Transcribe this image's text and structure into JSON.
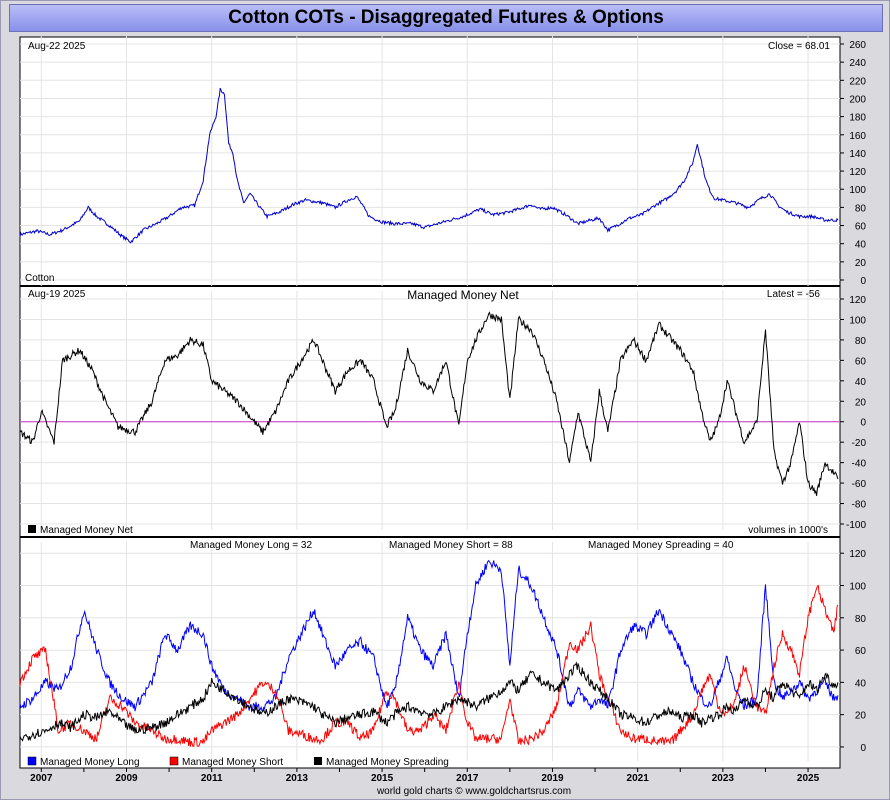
{
  "title": "Cotton COTs - Disaggregated Futures & Options",
  "footer": "world gold charts © www.goldchartsrus.com",
  "colors": {
    "price": "#0000cc",
    "net": "#000000",
    "zero_line": "#cc33cc",
    "long": "#0000ff",
    "short": "#ff0000",
    "spreading": "#000000",
    "title_bg": "#9aa0f0"
  },
  "x_axis": {
    "range": [
      2006.5,
      2025.75
    ],
    "tick_labels": [
      "2007",
      "2009",
      "2011",
      "2013",
      "2015",
      "2017",
      "2019",
      "2021",
      "2023",
      "2025"
    ]
  },
  "chart_data": [
    {
      "type": "line",
      "name": "price-panel",
      "date_label": "Aug-22  2025",
      "latest_label": "Close = 68.01",
      "series_label": "Cotton",
      "ylim": [
        0,
        260
      ],
      "yticks": [
        0,
        20,
        40,
        60,
        80,
        100,
        120,
        140,
        160,
        180,
        200,
        220,
        240,
        260
      ],
      "series": [
        {
          "name": "Cotton",
          "color": "#0000cc",
          "x": [
            2006.5,
            2006.9,
            2007.2,
            2007.5,
            2007.9,
            2008.1,
            2008.3,
            2008.6,
            2008.9,
            2009.1,
            2009.4,
            2009.7,
            2010.0,
            2010.3,
            2010.6,
            2010.8,
            2010.95,
            2011.1,
            2011.2,
            2011.3,
            2011.4,
            2011.5,
            2011.6,
            2011.75,
            2011.9,
            2012.1,
            2012.3,
            2012.6,
            2012.9,
            2013.2,
            2013.6,
            2013.9,
            2014.2,
            2014.4,
            2014.5,
            2014.7,
            2015.0,
            2015.3,
            2015.7,
            2016.0,
            2016.3,
            2016.6,
            2016.9,
            2017.1,
            2017.3,
            2017.6,
            2017.9,
            2018.2,
            2018.5,
            2018.7,
            2019.0,
            2019.3,
            2019.6,
            2019.9,
            2020.1,
            2020.3,
            2020.5,
            2020.8,
            2021.1,
            2021.4,
            2021.7,
            2021.9,
            2022.1,
            2022.3,
            2022.4,
            2022.5,
            2022.6,
            2022.7,
            2022.8,
            2023.0,
            2023.3,
            2023.6,
            2023.9,
            2024.1,
            2024.3,
            2024.5,
            2024.8,
            2025.1,
            2025.4,
            2025.7
          ],
          "y": [
            50,
            54,
            50,
            55,
            65,
            80,
            70,
            60,
            48,
            42,
            55,
            62,
            70,
            80,
            82,
            110,
            160,
            180,
            210,
            205,
            150,
            140,
            110,
            85,
            95,
            82,
            70,
            75,
            83,
            88,
            85,
            80,
            88,
            92,
            85,
            70,
            64,
            62,
            62,
            58,
            62,
            66,
            70,
            74,
            78,
            72,
            74,
            78,
            83,
            78,
            80,
            72,
            62,
            66,
            68,
            55,
            60,
            68,
            72,
            82,
            90,
            98,
            110,
            130,
            150,
            130,
            110,
            98,
            90,
            88,
            85,
            80,
            90,
            95,
            82,
            75,
            70,
            70,
            66,
            66
          ]
        }
      ]
    },
    {
      "type": "line",
      "name": "managed-money-net-panel",
      "date_label": "Aug-19  2025",
      "title": "Managed Money Net",
      "latest_label": "Latest = -56",
      "legend": "Managed Money Net",
      "units_note": "volumes in 1000's",
      "ylim": [
        -100,
        120
      ],
      "yticks": [
        -100,
        -80,
        -60,
        -40,
        -20,
        0,
        20,
        40,
        60,
        80,
        100,
        120
      ],
      "series": [
        {
          "name": "Managed Money Net",
          "color": "#000000",
          "x": [
            2006.5,
            2006.8,
            2007.0,
            2007.3,
            2007.5,
            2007.9,
            2008.2,
            2008.5,
            2008.8,
            2009.2,
            2009.6,
            2009.9,
            2010.2,
            2010.5,
            2010.8,
            2011.0,
            2011.3,
            2011.6,
            2011.9,
            2012.2,
            2012.5,
            2012.8,
            2013.1,
            2013.4,
            2013.6,
            2013.9,
            2014.2,
            2014.5,
            2014.8,
            2015.1,
            2015.3,
            2015.6,
            2015.9,
            2016.2,
            2016.5,
            2016.8,
            2017.0,
            2017.2,
            2017.5,
            2017.8,
            2018.0,
            2018.2,
            2018.5,
            2018.8,
            2019.1,
            2019.4,
            2019.6,
            2019.9,
            2020.1,
            2020.3,
            2020.6,
            2020.9,
            2021.2,
            2021.5,
            2021.8,
            2022.0,
            2022.3,
            2022.5,
            2022.7,
            2022.9,
            2023.1,
            2023.3,
            2023.5,
            2023.8,
            2024.0,
            2024.2,
            2024.4,
            2024.6,
            2024.8,
            2025.0,
            2025.2,
            2025.4,
            2025.6,
            2025.7
          ],
          "y": [
            -10,
            -20,
            10,
            -20,
            60,
            70,
            50,
            20,
            -5,
            -10,
            20,
            60,
            65,
            80,
            75,
            40,
            30,
            20,
            5,
            -10,
            10,
            40,
            60,
            80,
            60,
            30,
            50,
            60,
            40,
            -5,
            10,
            70,
            40,
            30,
            60,
            -5,
            60,
            80,
            105,
            100,
            20,
            100,
            90,
            60,
            20,
            -40,
            10,
            -40,
            30,
            -10,
            60,
            80,
            60,
            95,
            80,
            70,
            50,
            10,
            -20,
            0,
            40,
            10,
            -20,
            0,
            90,
            -30,
            -60,
            -40,
            0,
            -60,
            -70,
            -40,
            -50,
            -56
          ]
        }
      ]
    },
    {
      "type": "line",
      "name": "managed-money-components-panel",
      "labels": [
        "Managed Money Long = 32",
        "Managed Money Short = 88",
        "Managed Money Spreading = 40"
      ],
      "legend": [
        "Managed Money Long",
        "Managed Money Short",
        "Managed Money Spreading"
      ],
      "ylim": [
        -5,
        122
      ],
      "yticks": [
        0,
        20,
        40,
        60,
        80,
        100,
        120
      ],
      "series": [
        {
          "name": "Managed Money Long",
          "color": "#0000ff",
          "x": [
            2006.5,
            2006.8,
            2007.1,
            2007.4,
            2007.7,
            2008.0,
            2008.3,
            2008.6,
            2008.9,
            2009.2,
            2009.6,
            2009.9,
            2010.2,
            2010.5,
            2010.8,
            2011.0,
            2011.3,
            2011.6,
            2011.9,
            2012.2,
            2012.5,
            2012.8,
            2013.1,
            2013.4,
            2013.6,
            2013.9,
            2014.2,
            2014.5,
            2014.8,
            2015.1,
            2015.3,
            2015.6,
            2015.9,
            2016.2,
            2016.5,
            2016.8,
            2017.0,
            2017.2,
            2017.5,
            2017.8,
            2018.0,
            2018.2,
            2018.5,
            2018.8,
            2019.1,
            2019.4,
            2019.6,
            2019.9,
            2020.1,
            2020.3,
            2020.6,
            2020.9,
            2021.2,
            2021.5,
            2021.8,
            2022.0,
            2022.3,
            2022.5,
            2022.7,
            2022.9,
            2023.1,
            2023.3,
            2023.5,
            2023.8,
            2024.0,
            2024.2,
            2024.4,
            2024.6,
            2024.8,
            2025.0,
            2025.2,
            2025.4,
            2025.6,
            2025.7
          ],
          "y": [
            25,
            30,
            40,
            35,
            50,
            85,
            60,
            40,
            30,
            25,
            40,
            70,
            60,
            75,
            70,
            50,
            35,
            30,
            25,
            25,
            30,
            55,
            70,
            85,
            70,
            50,
            60,
            65,
            55,
            25,
            35,
            80,
            60,
            50,
            70,
            30,
            70,
            100,
            115,
            110,
            50,
            110,
            100,
            80,
            60,
            25,
            35,
            25,
            30,
            25,
            60,
            75,
            70,
            85,
            70,
            60,
            40,
            30,
            25,
            40,
            55,
            35,
            25,
            30,
            100,
            40,
            30,
            35,
            40,
            30,
            35,
            40,
            30,
            32
          ]
        },
        {
          "name": "Managed Money Short",
          "color": "#ff0000",
          "x": [
            2006.5,
            2006.8,
            2007.1,
            2007.4,
            2007.7,
            2008.0,
            2008.3,
            2008.6,
            2008.9,
            2009.2,
            2009.6,
            2009.9,
            2010.2,
            2010.5,
            2010.8,
            2011.0,
            2011.3,
            2011.6,
            2011.9,
            2012.2,
            2012.5,
            2012.8,
            2013.1,
            2013.4,
            2013.6,
            2013.9,
            2014.2,
            2014.5,
            2014.8,
            2015.1,
            2015.3,
            2015.6,
            2015.9,
            2016.2,
            2016.5,
            2016.8,
            2017.0,
            2017.2,
            2017.5,
            2017.8,
            2018.0,
            2018.2,
            2018.5,
            2018.8,
            2019.1,
            2019.4,
            2019.6,
            2019.9,
            2020.1,
            2020.3,
            2020.6,
            2020.9,
            2021.2,
            2021.5,
            2021.8,
            2022.0,
            2022.3,
            2022.5,
            2022.7,
            2022.9,
            2023.1,
            2023.3,
            2023.5,
            2023.8,
            2024.0,
            2024.2,
            2024.4,
            2024.6,
            2024.8,
            2025.0,
            2025.2,
            2025.4,
            2025.6,
            2025.7
          ],
          "y": [
            40,
            55,
            60,
            10,
            15,
            10,
            5,
            30,
            25,
            15,
            10,
            5,
            5,
            3,
            3,
            10,
            15,
            20,
            30,
            40,
            35,
            10,
            8,
            5,
            5,
            15,
            15,
            5,
            10,
            35,
            30,
            10,
            10,
            20,
            10,
            40,
            15,
            5,
            5,
            5,
            30,
            3,
            5,
            10,
            25,
            65,
            60,
            75,
            45,
            30,
            10,
            5,
            5,
            3,
            3,
            10,
            20,
            35,
            45,
            25,
            20,
            30,
            50,
            25,
            20,
            50,
            70,
            60,
            45,
            80,
            100,
            85,
            70,
            88
          ]
        },
        {
          "name": "Managed Money Spreading",
          "color": "#000000",
          "x": [
            2006.5,
            2006.8,
            2007.1,
            2007.4,
            2007.7,
            2008.0,
            2008.3,
            2008.6,
            2008.9,
            2009.2,
            2009.6,
            2009.9,
            2010.2,
            2010.5,
            2010.8,
            2011.0,
            2011.3,
            2011.6,
            2011.9,
            2012.2,
            2012.5,
            2012.8,
            2013.1,
            2013.4,
            2013.6,
            2013.9,
            2014.2,
            2014.5,
            2014.8,
            2015.1,
            2015.3,
            2015.6,
            2015.9,
            2016.2,
            2016.5,
            2016.8,
            2017.0,
            2017.2,
            2017.5,
            2017.8,
            2018.0,
            2018.2,
            2018.5,
            2018.8,
            2019.1,
            2019.4,
            2019.6,
            2019.9,
            2020.1,
            2020.3,
            2020.6,
            2020.9,
            2021.2,
            2021.5,
            2021.8,
            2022.0,
            2022.3,
            2022.5,
            2022.7,
            2022.9,
            2023.1,
            2023.3,
            2023.5,
            2023.8,
            2024.0,
            2024.2,
            2024.4,
            2024.6,
            2024.8,
            2025.0,
            2025.2,
            2025.4,
            2025.6,
            2025.7
          ],
          "y": [
            5,
            8,
            10,
            15,
            12,
            20,
            18,
            22,
            15,
            10,
            12,
            15,
            20,
            25,
            30,
            40,
            35,
            30,
            25,
            20,
            25,
            30,
            28,
            25,
            20,
            15,
            18,
            20,
            22,
            15,
            20,
            25,
            22,
            20,
            25,
            30,
            28,
            25,
            30,
            35,
            40,
            35,
            45,
            40,
            35,
            45,
            50,
            40,
            35,
            30,
            20,
            18,
            15,
            20,
            22,
            18,
            20,
            15,
            18,
            20,
            25,
            22,
            30,
            25,
            35,
            30,
            40,
            35,
            30,
            40,
            35,
            45,
            38,
            40
          ]
        }
      ]
    }
  ]
}
